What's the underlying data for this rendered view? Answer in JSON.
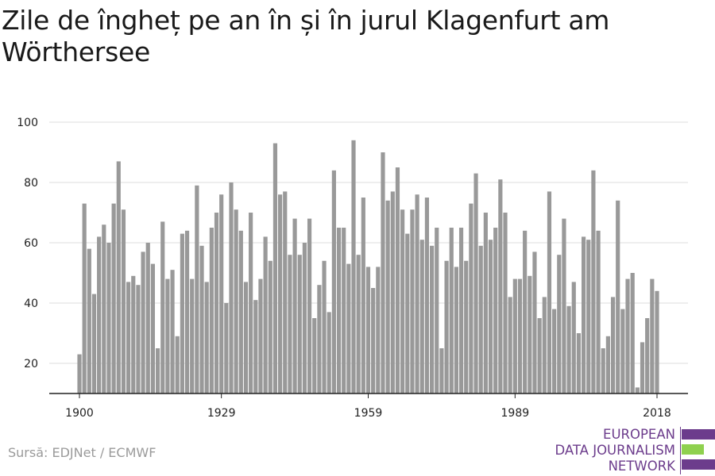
{
  "title": "Zile de îngheț pe an în și în jurul Klagenfurt am Wörthersee",
  "source": "Sursă: EDJNet / ECMWF",
  "logo": {
    "lines": [
      "EUROPEAN",
      "DATA JOURNALISM",
      "NETWORK"
    ]
  },
  "colors": {
    "bar": "#999999",
    "logo_purple": "#6c3c8c",
    "logo_green": "#8fd14f",
    "grid": "#dddddd",
    "axis": "#222222"
  },
  "chart_data": {
    "type": "bar",
    "title": "Zile de îngheț pe an în și în jurul Klagenfurt am Wörthersee",
    "xlabel": "",
    "ylabel": "",
    "x": [
      1900,
      1901,
      1902,
      1903,
      1904,
      1905,
      1906,
      1907,
      1908,
      1909,
      1910,
      1911,
      1912,
      1913,
      1914,
      1915,
      1916,
      1917,
      1918,
      1919,
      1920,
      1921,
      1922,
      1923,
      1924,
      1925,
      1926,
      1927,
      1928,
      1929,
      1930,
      1931,
      1932,
      1933,
      1934,
      1935,
      1936,
      1937,
      1938,
      1939,
      1940,
      1941,
      1942,
      1943,
      1944,
      1945,
      1946,
      1947,
      1948,
      1949,
      1950,
      1951,
      1952,
      1953,
      1954,
      1955,
      1956,
      1957,
      1958,
      1959,
      1960,
      1961,
      1962,
      1963,
      1964,
      1965,
      1966,
      1967,
      1968,
      1969,
      1970,
      1971,
      1972,
      1973,
      1974,
      1975,
      1976,
      1977,
      1978,
      1979,
      1980,
      1981,
      1982,
      1983,
      1984,
      1985,
      1986,
      1987,
      1988,
      1989,
      1990,
      1991,
      1992,
      1993,
      1994,
      1995,
      1996,
      1997,
      1998,
      1999,
      2000,
      2001,
      2002,
      2003,
      2004,
      2005,
      2006,
      2007,
      2008,
      2009,
      2010,
      2011,
      2012,
      2013,
      2014,
      2015,
      2016,
      2017,
      2018
    ],
    "values": [
      23,
      73,
      58,
      43,
      62,
      66,
      60,
      73,
      87,
      71,
      47,
      49,
      46,
      57,
      60,
      53,
      25,
      67,
      48,
      51,
      29,
      63,
      64,
      48,
      79,
      59,
      47,
      65,
      70,
      76,
      40,
      80,
      71,
      64,
      47,
      70,
      41,
      48,
      62,
      54,
      93,
      76,
      77,
      56,
      68,
      56,
      60,
      68,
      35,
      46,
      54,
      37,
      84,
      65,
      65,
      53,
      94,
      56,
      75,
      52,
      45,
      52,
      90,
      74,
      77,
      85,
      71,
      63,
      71,
      76,
      61,
      75,
      59,
      65,
      25,
      54,
      65,
      52,
      65,
      54,
      73,
      83,
      59,
      70,
      61,
      65,
      81,
      70,
      42,
      48,
      48,
      64,
      49,
      57,
      35,
      42,
      77,
      38,
      56,
      68,
      39,
      47,
      30,
      62,
      61,
      84,
      64,
      25,
      29,
      42,
      74,
      38,
      48,
      50,
      12,
      27,
      35,
      48,
      44
    ],
    "x_ticks": [
      "1900",
      "1929",
      "1959",
      "1989",
      "2018"
    ],
    "y_ticks": [
      "20",
      "40",
      "60",
      "80",
      "100"
    ],
    "ylim": [
      10,
      100
    ],
    "grid": true,
    "legend": "none"
  }
}
